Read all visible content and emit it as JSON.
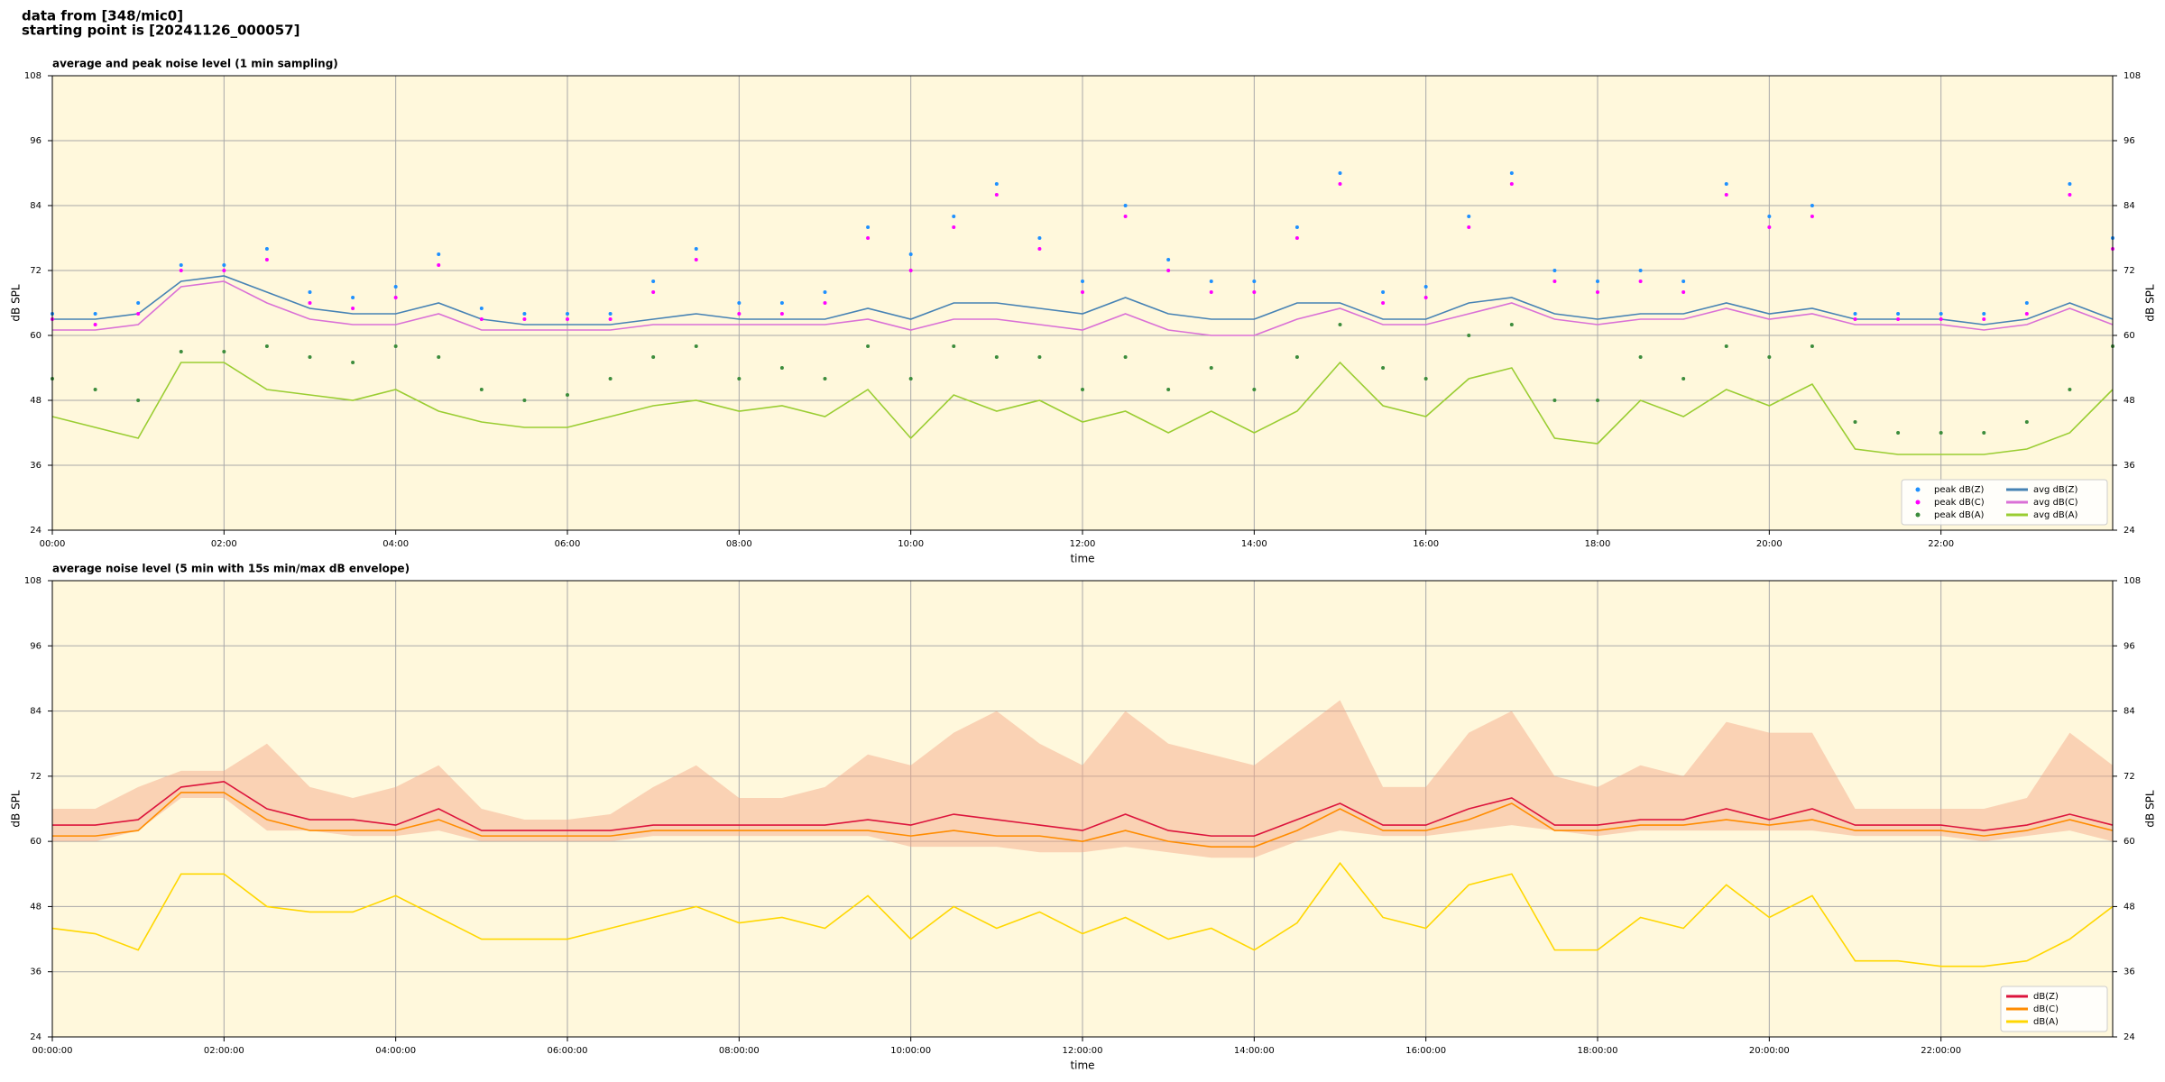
{
  "header": {
    "line1": "data from [348/mic0]",
    "line2": "starting point is [20241126_000057]"
  },
  "chart_data": [
    {
      "type": "line",
      "title": "average and peak noise level (1 min sampling)",
      "ylabel": "dB SPL",
      "xlabel": "time",
      "xlim": [
        0,
        24
      ],
      "ylim": [
        24,
        108
      ],
      "yticks": [
        24,
        36,
        48,
        60,
        72,
        84,
        96,
        108
      ],
      "xticks": [
        {
          "value": 0,
          "label": "00:00"
        },
        {
          "value": 2,
          "label": "02:00"
        },
        {
          "value": 4,
          "label": "04:00"
        },
        {
          "value": 6,
          "label": "06:00"
        },
        {
          "value": 8,
          "label": "08:00"
        },
        {
          "value": 10,
          "label": "10:00"
        },
        {
          "value": 12,
          "label": "12:00"
        },
        {
          "value": 14,
          "label": "14:00"
        },
        {
          "value": 16,
          "label": "16:00"
        },
        {
          "value": 18,
          "label": "18:00"
        },
        {
          "value": 20,
          "label": "20:00"
        },
        {
          "value": 22,
          "label": "22:00"
        }
      ],
      "grid": true,
      "legend": "lower right",
      "background": "#fff8dc",
      "x": [
        0,
        0.5,
        1,
        1.5,
        2,
        2.5,
        3,
        3.5,
        4,
        4.5,
        5,
        5.5,
        6,
        6.5,
        7,
        7.5,
        8,
        8.5,
        9,
        9.5,
        10,
        10.5,
        11,
        11.5,
        12,
        12.5,
        13,
        13.5,
        14,
        14.5,
        15,
        15.5,
        16,
        16.5,
        17,
        17.5,
        18,
        18.5,
        19,
        19.5,
        20,
        20.5,
        21,
        21.5,
        22,
        22.5,
        23,
        23.5,
        24
      ],
      "series": [
        {
          "name": "peak dB(Z)",
          "type": "scatter",
          "color": "#1e90ff",
          "values": [
            64,
            64,
            66,
            73,
            73,
            76,
            68,
            67,
            69,
            75,
            65,
            64,
            64,
            64,
            70,
            76,
            66,
            66,
            68,
            80,
            75,
            82,
            88,
            78,
            70,
            84,
            74,
            70,
            70,
            80,
            90,
            68,
            69,
            82,
            90,
            72,
            70,
            72,
            70,
            88,
            82,
            84,
            64,
            64,
            64,
            64,
            66,
            88,
            78
          ]
        },
        {
          "name": "peak dB(C)",
          "type": "scatter",
          "color": "#ff00ff",
          "values": [
            63,
            62,
            64,
            72,
            72,
            74,
            66,
            65,
            67,
            73,
            63,
            63,
            63,
            63,
            68,
            74,
            64,
            64,
            66,
            78,
            72,
            80,
            86,
            76,
            68,
            82,
            72,
            68,
            68,
            78,
            88,
            66,
            67,
            80,
            88,
            70,
            68,
            70,
            68,
            86,
            80,
            82,
            63,
            63,
            63,
            63,
            64,
            86,
            76
          ]
        },
        {
          "name": "peak dB(A)",
          "type": "scatter",
          "color": "#3c8c3c",
          "values": [
            52,
            50,
            48,
            57,
            57,
            58,
            56,
            55,
            58,
            56,
            50,
            48,
            49,
            52,
            56,
            58,
            52,
            54,
            52,
            58,
            52,
            58,
            56,
            56,
            50,
            56,
            50,
            54,
            50,
            56,
            62,
            54,
            52,
            60,
            62,
            48,
            48,
            56,
            52,
            58,
            56,
            58,
            44,
            42,
            42,
            42,
            44,
            50,
            58
          ]
        },
        {
          "name": "avg dB(Z)",
          "type": "line",
          "color": "#4682b4",
          "values": [
            63,
            63,
            64,
            70,
            71,
            68,
            65,
            64,
            64,
            66,
            63,
            62,
            62,
            62,
            63,
            64,
            63,
            63,
            63,
            65,
            63,
            66,
            66,
            65,
            64,
            67,
            64,
            63,
            63,
            66,
            66,
            63,
            63,
            66,
            67,
            64,
            63,
            64,
            64,
            66,
            64,
            65,
            63,
            63,
            63,
            62,
            63,
            66,
            63
          ]
        },
        {
          "name": "avg dB(C)",
          "type": "line",
          "color": "#da70d6",
          "values": [
            61,
            61,
            62,
            69,
            70,
            66,
            63,
            62,
            62,
            64,
            61,
            61,
            61,
            61,
            62,
            62,
            62,
            62,
            62,
            63,
            61,
            63,
            63,
            62,
            61,
            64,
            61,
            60,
            60,
            63,
            65,
            62,
            62,
            64,
            66,
            63,
            62,
            63,
            63,
            65,
            63,
            64,
            62,
            62,
            62,
            61,
            62,
            65,
            62
          ]
        },
        {
          "name": "avg dB(A)",
          "type": "line",
          "color": "#9acd32",
          "values": [
            45,
            43,
            41,
            55,
            55,
            50,
            49,
            48,
            50,
            46,
            44,
            43,
            43,
            45,
            47,
            48,
            46,
            47,
            45,
            50,
            41,
            49,
            46,
            48,
            44,
            46,
            42,
            46,
            42,
            46,
            55,
            47,
            45,
            52,
            54,
            41,
            40,
            48,
            45,
            50,
            47,
            51,
            39,
            38,
            38,
            38,
            39,
            42,
            50
          ]
        }
      ]
    },
    {
      "type": "line",
      "title": "average noise level (5 min with 15s min/max dB envelope)",
      "ylabel": "dB SPL",
      "xlabel": "time",
      "xlim": [
        0,
        24
      ],
      "ylim": [
        24,
        108
      ],
      "yticks": [
        24,
        36,
        48,
        60,
        72,
        84,
        96,
        108
      ],
      "xticks": [
        {
          "value": 0,
          "label": "00:00:00"
        },
        {
          "value": 2,
          "label": "02:00:00"
        },
        {
          "value": 4,
          "label": "04:00:00"
        },
        {
          "value": 6,
          "label": "06:00:00"
        },
        {
          "value": 8,
          "label": "08:00:00"
        },
        {
          "value": 10,
          "label": "10:00:00"
        },
        {
          "value": 12,
          "label": "12:00:00"
        },
        {
          "value": 14,
          "label": "14:00:00"
        },
        {
          "value": 16,
          "label": "16:00:00"
        },
        {
          "value": 18,
          "label": "18:00:00"
        },
        {
          "value": 20,
          "label": "20:00:00"
        },
        {
          "value": 22,
          "label": "22:00:00"
        }
      ],
      "grid": true,
      "legend": "lower right",
      "background": "#fff8dc",
      "x": [
        0,
        0.5,
        1,
        1.5,
        2,
        2.5,
        3,
        3.5,
        4,
        4.5,
        5,
        5.5,
        6,
        6.5,
        7,
        7.5,
        8,
        8.5,
        9,
        9.5,
        10,
        10.5,
        11,
        11.5,
        12,
        12.5,
        13,
        13.5,
        14,
        14.5,
        15,
        15.5,
        16,
        16.5,
        17,
        17.5,
        18,
        18.5,
        19,
        19.5,
        20,
        20.5,
        21,
        21.5,
        22,
        22.5,
        23,
        23.5,
        24
      ],
      "envelope": {
        "color": "#f4a582",
        "max": [
          66,
          66,
          70,
          73,
          73,
          78,
          70,
          68,
          70,
          74,
          66,
          64,
          64,
          65,
          70,
          74,
          68,
          68,
          70,
          76,
          74,
          80,
          84,
          78,
          74,
          84,
          78,
          76,
          74,
          80,
          86,
          70,
          70,
          80,
          84,
          72,
          70,
          74,
          72,
          82,
          80,
          80,
          66,
          66,
          66,
          66,
          68,
          80,
          74
        ],
        "min": [
          60,
          60,
          62,
          68,
          68,
          62,
          62,
          61,
          61,
          62,
          60,
          60,
          60,
          60,
          61,
          61,
          61,
          61,
          61,
          61,
          59,
          59,
          59,
          58,
          58,
          59,
          58,
          57,
          57,
          60,
          62,
          61,
          61,
          62,
          63,
          62,
          61,
          62,
          62,
          62,
          62,
          62,
          61,
          61,
          61,
          60,
          61,
          62,
          60
        ]
      },
      "series": [
        {
          "name": "dB(Z)",
          "type": "line",
          "color": "#dc143c",
          "values": [
            63,
            63,
            64,
            70,
            71,
            66,
            64,
            64,
            63,
            66,
            62,
            62,
            62,
            62,
            63,
            63,
            63,
            63,
            63,
            64,
            63,
            65,
            64,
            63,
            62,
            65,
            62,
            61,
            61,
            64,
            67,
            63,
            63,
            66,
            68,
            63,
            63,
            64,
            64,
            66,
            64,
            66,
            63,
            63,
            63,
            62,
            63,
            65,
            63
          ]
        },
        {
          "name": "dB(C)",
          "type": "line",
          "color": "#ff8c00",
          "values": [
            61,
            61,
            62,
            69,
            69,
            64,
            62,
            62,
            62,
            64,
            61,
            61,
            61,
            61,
            62,
            62,
            62,
            62,
            62,
            62,
            61,
            62,
            61,
            61,
            60,
            62,
            60,
            59,
            59,
            62,
            66,
            62,
            62,
            64,
            67,
            62,
            62,
            63,
            63,
            64,
            63,
            64,
            62,
            62,
            62,
            61,
            62,
            64,
            62
          ]
        },
        {
          "name": "dB(A)",
          "type": "line",
          "color": "#ffd700",
          "values": [
            44,
            43,
            40,
            54,
            54,
            48,
            47,
            47,
            50,
            46,
            42,
            42,
            42,
            44,
            46,
            48,
            45,
            46,
            44,
            50,
            42,
            48,
            44,
            47,
            43,
            46,
            42,
            44,
            40,
            45,
            56,
            46,
            44,
            52,
            54,
            40,
            40,
            46,
            44,
            52,
            46,
            50,
            38,
            38,
            37,
            37,
            38,
            42,
            48
          ]
        }
      ]
    }
  ]
}
